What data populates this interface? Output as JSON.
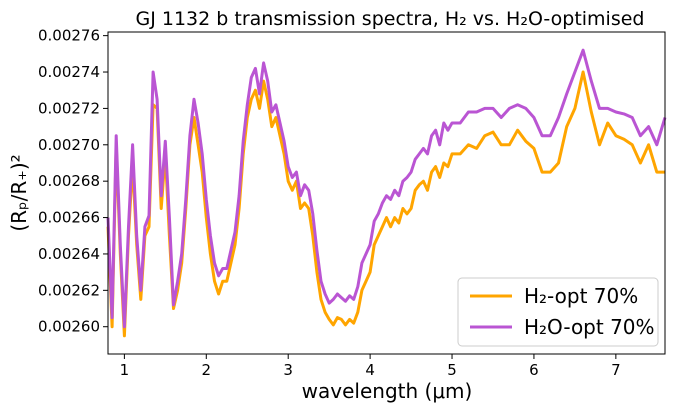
{
  "chart_data": {
    "type": "line",
    "title": "GJ 1132 b transmission spectra, H₂ vs. H₂O-optimised",
    "xlabel": "wavelength (μm)",
    "ylabel": "(Rₚ/R₊)²",
    "xlim": [
      0.8,
      7.6
    ],
    "ylim": [
      0.002585,
      0.002762
    ],
    "x_ticks": [
      1,
      2,
      3,
      4,
      5,
      6,
      7
    ],
    "x_tick_labels": [
      "1",
      "2",
      "3",
      "4",
      "5",
      "6",
      "7"
    ],
    "y_ticks": [
      0.0026,
      0.00262,
      0.00264,
      0.00266,
      0.00268,
      0.0027,
      0.00272,
      0.00274,
      0.00276
    ],
    "y_tick_labels": [
      "0.00260",
      "0.00262",
      "0.00264",
      "0.00266",
      "0.00268",
      "0.00270",
      "0.00272",
      "0.00274",
      "0.00276"
    ],
    "grid": false,
    "legend_position": "bottom-right",
    "series": [
      {
        "name": "H₂-opt 70%",
        "color": "#FFA500",
        "x": [
          0.8,
          0.85,
          0.9,
          0.95,
          1.0,
          1.05,
          1.1,
          1.15,
          1.2,
          1.25,
          1.3,
          1.35,
          1.4,
          1.45,
          1.5,
          1.55,
          1.6,
          1.65,
          1.7,
          1.75,
          1.8,
          1.85,
          1.9,
          1.95,
          2.0,
          2.05,
          2.1,
          2.15,
          2.2,
          2.25,
          2.3,
          2.35,
          2.4,
          2.45,
          2.5,
          2.55,
          2.6,
          2.65,
          2.7,
          2.75,
          2.8,
          2.85,
          2.9,
          2.95,
          3.0,
          3.05,
          3.1,
          3.15,
          3.2,
          3.25,
          3.3,
          3.35,
          3.4,
          3.45,
          3.5,
          3.55,
          3.6,
          3.65,
          3.7,
          3.75,
          3.8,
          3.85,
          3.9,
          3.95,
          4.0,
          4.05,
          4.1,
          4.15,
          4.2,
          4.25,
          4.3,
          4.35,
          4.4,
          4.45,
          4.5,
          4.55,
          4.6,
          4.65,
          4.7,
          4.75,
          4.8,
          4.85,
          4.9,
          4.95,
          5.0,
          5.1,
          5.2,
          5.3,
          5.4,
          5.5,
          5.6,
          5.7,
          5.8,
          5.9,
          6.0,
          6.1,
          6.2,
          6.3,
          6.4,
          6.5,
          6.6,
          6.7,
          6.8,
          6.9,
          7.0,
          7.1,
          7.2,
          7.3,
          7.4,
          7.5,
          7.6
        ],
        "values": [
          0.002655,
          0.0026,
          0.0027,
          0.00264,
          0.002595,
          0.00265,
          0.00269,
          0.002645,
          0.002615,
          0.00265,
          0.002655,
          0.002722,
          0.00272,
          0.002665,
          0.002695,
          0.00265,
          0.00261,
          0.00262,
          0.002635,
          0.002665,
          0.0027,
          0.002715,
          0.0027,
          0.002685,
          0.00266,
          0.00264,
          0.002625,
          0.002618,
          0.002625,
          0.002625,
          0.002635,
          0.002645,
          0.002665,
          0.002695,
          0.002715,
          0.002725,
          0.00273,
          0.00272,
          0.002735,
          0.002725,
          0.00271,
          0.002715,
          0.002705,
          0.002695,
          0.00268,
          0.002675,
          0.00268,
          0.002665,
          0.002668,
          0.002665,
          0.00265,
          0.00263,
          0.002615,
          0.002608,
          0.002604,
          0.002601,
          0.002605,
          0.002604,
          0.002601,
          0.002604,
          0.002602,
          0.002608,
          0.00262,
          0.002625,
          0.00263,
          0.002645,
          0.00265,
          0.002655,
          0.00266,
          0.002655,
          0.00266,
          0.002657,
          0.002665,
          0.002662,
          0.002665,
          0.002675,
          0.002678,
          0.00268,
          0.002675,
          0.002685,
          0.002688,
          0.002682,
          0.00269,
          0.002688,
          0.002695,
          0.002695,
          0.0027,
          0.002698,
          0.002705,
          0.002707,
          0.0027,
          0.0027,
          0.002708,
          0.002702,
          0.002698,
          0.002685,
          0.002685,
          0.00269,
          0.00271,
          0.00272,
          0.00274,
          0.002718,
          0.0027,
          0.002712,
          0.002705,
          0.002703,
          0.0027,
          0.00269,
          0.0027,
          0.002685,
          0.002685
        ]
      },
      {
        "name": "H₂O-opt 70%",
        "color": "#BA55D3",
        "x": [
          0.8,
          0.85,
          0.9,
          0.95,
          1.0,
          1.05,
          1.1,
          1.15,
          1.2,
          1.25,
          1.3,
          1.35,
          1.4,
          1.45,
          1.5,
          1.55,
          1.6,
          1.65,
          1.7,
          1.75,
          1.8,
          1.85,
          1.9,
          1.95,
          2.0,
          2.05,
          2.1,
          2.15,
          2.2,
          2.25,
          2.3,
          2.35,
          2.4,
          2.45,
          2.5,
          2.55,
          2.6,
          2.65,
          2.7,
          2.75,
          2.8,
          2.85,
          2.9,
          2.95,
          3.0,
          3.05,
          3.1,
          3.15,
          3.2,
          3.25,
          3.3,
          3.35,
          3.4,
          3.45,
          3.5,
          3.55,
          3.6,
          3.65,
          3.7,
          3.75,
          3.8,
          3.85,
          3.9,
          3.95,
          4.0,
          4.05,
          4.1,
          4.15,
          4.2,
          4.25,
          4.3,
          4.35,
          4.4,
          4.45,
          4.5,
          4.55,
          4.6,
          4.65,
          4.7,
          4.75,
          4.8,
          4.85,
          4.9,
          4.95,
          5.0,
          5.1,
          5.2,
          5.3,
          5.4,
          5.5,
          5.6,
          5.7,
          5.8,
          5.9,
          6.0,
          6.1,
          6.2,
          6.3,
          6.4,
          6.5,
          6.6,
          6.7,
          6.8,
          6.9,
          7.0,
          7.1,
          7.2,
          7.3,
          7.4,
          7.5,
          7.6
        ],
        "values": [
          0.00266,
          0.002605,
          0.002705,
          0.002645,
          0.0026,
          0.002655,
          0.0027,
          0.00265,
          0.00262,
          0.002655,
          0.002661,
          0.00274,
          0.002725,
          0.002672,
          0.002702,
          0.00266,
          0.002612,
          0.002625,
          0.00264,
          0.00267,
          0.002705,
          0.002725,
          0.002712,
          0.002695,
          0.00267,
          0.00265,
          0.002635,
          0.002628,
          0.002632,
          0.002632,
          0.002642,
          0.002652,
          0.002672,
          0.002702,
          0.002722,
          0.002737,
          0.002742,
          0.002728,
          0.002745,
          0.002735,
          0.002718,
          0.002722,
          0.002712,
          0.002702,
          0.002688,
          0.002682,
          0.002685,
          0.002672,
          0.002678,
          0.002675,
          0.002662,
          0.002642,
          0.002625,
          0.002618,
          0.002613,
          0.002615,
          0.002618,
          0.002616,
          0.002614,
          0.002617,
          0.002615,
          0.002622,
          0.002635,
          0.00264,
          0.002645,
          0.002658,
          0.002662,
          0.002668,
          0.002672,
          0.00267,
          0.002675,
          0.002672,
          0.00268,
          0.002682,
          0.002685,
          0.002692,
          0.002695,
          0.002698,
          0.002695,
          0.002705,
          0.002708,
          0.0027,
          0.002712,
          0.002708,
          0.002712,
          0.002712,
          0.002718,
          0.002718,
          0.00272,
          0.00272,
          0.002715,
          0.00272,
          0.002722,
          0.00272,
          0.002715,
          0.002705,
          0.002705,
          0.002715,
          0.002728,
          0.00274,
          0.002752,
          0.002735,
          0.00272,
          0.00272,
          0.002718,
          0.002717,
          0.002715,
          0.002705,
          0.00271,
          0.0027,
          0.002715
        ]
      }
    ]
  }
}
